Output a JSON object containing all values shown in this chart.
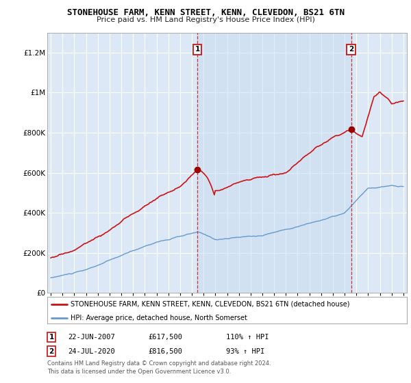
{
  "title": "STONEHOUSE FARM, KENN STREET, KENN, CLEVEDON, BS21 6TN",
  "subtitle": "Price paid vs. HM Land Registry's House Price Index (HPI)",
  "plot_bg_color": "#dce8f5",
  "shade_color": "#c8ddf0",
  "ylim": [
    0,
    1300000
  ],
  "yticks": [
    0,
    200000,
    400000,
    600000,
    800000,
    1000000,
    1200000
  ],
  "ytick_labels": [
    "£0",
    "£200K",
    "£400K",
    "£600K",
    "£800K",
    "£1M",
    "£1.2M"
  ],
  "sale1_year": 2007.47,
  "sale1_price": 617500,
  "sale2_year": 2020.56,
  "sale2_price": 816500,
  "red_line_color": "#cc1111",
  "blue_line_color": "#6699cc",
  "dashed_line_color": "#cc3333",
  "dot_color": "#990000",
  "legend_red_label": "STONEHOUSE FARM, KENN STREET, KENN, CLEVEDON, BS21 6TN (detached house)",
  "legend_blue_label": "HPI: Average price, detached house, North Somerset",
  "footer1": "Contains HM Land Registry data © Crown copyright and database right 2024.",
  "footer2": "This data is licensed under the Open Government Licence v3.0.",
  "note1_num": "1",
  "note1_date": "22-JUN-2007",
  "note1_price": "£617,500",
  "note1_hpi": "110% ↑ HPI",
  "note2_num": "2",
  "note2_date": "24-JUL-2020",
  "note2_price": "£816,500",
  "note2_hpi": "93% ↑ HPI",
  "xmin": 1994.7,
  "xmax": 2025.3
}
